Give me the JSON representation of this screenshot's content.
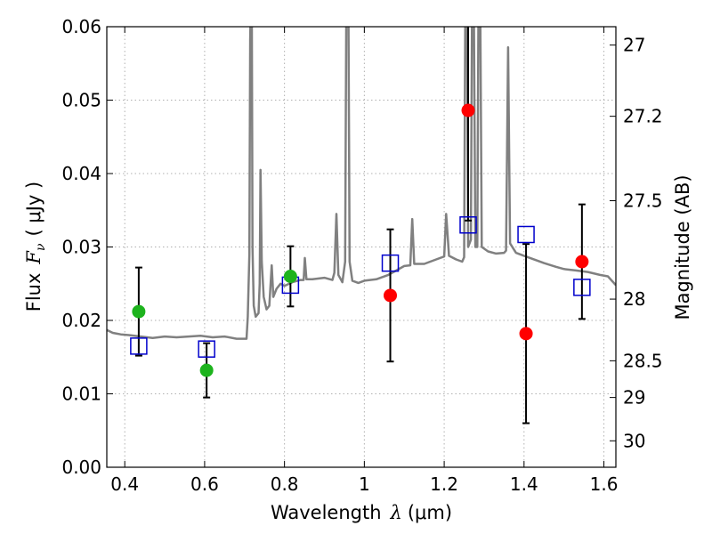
{
  "chart_data": {
    "type": "scatter",
    "xlabel": "Wavelength",
    "xlabel_symbol": "λ",
    "xlabel_unit": "(μm)",
    "ylabel": "Flux",
    "ylabel_symbol": "F",
    "ylabel_subscript": "ν",
    "ylabel_unit": "( μJy )",
    "y2label": "Magnitude (AB)",
    "xlim": [
      0.355,
      1.63
    ],
    "ylim": [
      0.0,
      0.06
    ],
    "grid": true,
    "x_ticks": [
      {
        "value": 0.4,
        "label": "0.4"
      },
      {
        "value": 0.6,
        "label": "0.6"
      },
      {
        "value": 0.8,
        "label": "0.8"
      },
      {
        "value": 1.0,
        "label": "1"
      },
      {
        "value": 1.2,
        "label": "1.2"
      },
      {
        "value": 1.4,
        "label": "1.4"
      },
      {
        "value": 1.6,
        "label": "1.6"
      }
    ],
    "y_ticks": [
      {
        "value": 0.0,
        "label": "0.00"
      },
      {
        "value": 0.01,
        "label": "0.01"
      },
      {
        "value": 0.02,
        "label": "0.02"
      },
      {
        "value": 0.03,
        "label": "0.03"
      },
      {
        "value": 0.04,
        "label": "0.04"
      },
      {
        "value": 0.05,
        "label": "0.05"
      },
      {
        "value": 0.06,
        "label": "0.06"
      }
    ],
    "mag_ticks": [
      {
        "label": "27",
        "flux": 0.0575
      },
      {
        "label": "27.2",
        "flux": 0.0478
      },
      {
        "label": "27.5",
        "flux": 0.0363
      },
      {
        "label": "28",
        "flux": 0.0229
      },
      {
        "label": "28.5",
        "flux": 0.0145
      },
      {
        "label": "29",
        "flux": 0.0095
      },
      {
        "label": "30",
        "flux": 0.0036
      }
    ],
    "colors": {
      "model": "#808080",
      "green": "#1db31d",
      "red": "#ff0000",
      "blue_box": "#0000cc",
      "error": "#000000",
      "grid": "#b0b0b0"
    },
    "model_spectrum": [
      [
        0.355,
        0.0187
      ],
      [
        0.37,
        0.0183
      ],
      [
        0.39,
        0.0181
      ],
      [
        0.41,
        0.018
      ],
      [
        0.44,
        0.0178
      ],
      [
        0.47,
        0.0176
      ],
      [
        0.5,
        0.0178
      ],
      [
        0.53,
        0.0177
      ],
      [
        0.56,
        0.0178
      ],
      [
        0.59,
        0.0179
      ],
      [
        0.62,
        0.0177
      ],
      [
        0.65,
        0.0178
      ],
      [
        0.68,
        0.0175
      ],
      [
        0.705,
        0.0175
      ],
      [
        0.708,
        0.0205
      ],
      [
        0.712,
        0.029
      ],
      [
        0.714,
        0.0582
      ],
      [
        0.716,
        0.065
      ],
      [
        0.718,
        0.063
      ],
      [
        0.72,
        0.03
      ],
      [
        0.723,
        0.022
      ],
      [
        0.728,
        0.0205
      ],
      [
        0.735,
        0.021
      ],
      [
        0.738,
        0.025
      ],
      [
        0.74,
        0.0405
      ],
      [
        0.743,
        0.028
      ],
      [
        0.748,
        0.0232
      ],
      [
        0.755,
        0.0215
      ],
      [
        0.762,
        0.022
      ],
      [
        0.768,
        0.0275
      ],
      [
        0.772,
        0.0232
      ],
      [
        0.78,
        0.0243
      ],
      [
        0.79,
        0.025
      ],
      [
        0.8,
        0.0247
      ],
      [
        0.82,
        0.0252
      ],
      [
        0.84,
        0.0255
      ],
      [
        0.848,
        0.0255
      ],
      [
        0.851,
        0.0285
      ],
      [
        0.855,
        0.0256
      ],
      [
        0.87,
        0.0256
      ],
      [
        0.9,
        0.0258
      ],
      [
        0.92,
        0.0255
      ],
      [
        0.925,
        0.0265
      ],
      [
        0.93,
        0.0345
      ],
      [
        0.935,
        0.0262
      ],
      [
        0.945,
        0.0252
      ],
      [
        0.952,
        0.028
      ],
      [
        0.955,
        0.065
      ],
      [
        0.96,
        0.065
      ],
      [
        0.963,
        0.028
      ],
      [
        0.97,
        0.0254
      ],
      [
        0.985,
        0.0251
      ],
      [
        1.0,
        0.0254
      ],
      [
        1.03,
        0.0256
      ],
      [
        1.06,
        0.0262
      ],
      [
        1.08,
        0.0268
      ],
      [
        1.1,
        0.0274
      ],
      [
        1.115,
        0.0275
      ],
      [
        1.12,
        0.0338
      ],
      [
        1.125,
        0.0277
      ],
      [
        1.15,
        0.0277
      ],
      [
        1.18,
        0.0283
      ],
      [
        1.2,
        0.0287
      ],
      [
        1.205,
        0.0345
      ],
      [
        1.212,
        0.0288
      ],
      [
        1.23,
        0.0283
      ],
      [
        1.245,
        0.028
      ],
      [
        1.25,
        0.0286
      ],
      [
        1.253,
        0.065
      ],
      [
        1.257,
        0.065
      ],
      [
        1.26,
        0.03
      ],
      [
        1.267,
        0.031
      ],
      [
        1.27,
        0.065
      ],
      [
        1.274,
        0.065
      ],
      [
        1.278,
        0.03
      ],
      [
        1.283,
        0.03
      ],
      [
        1.286,
        0.065
      ],
      [
        1.29,
        0.065
      ],
      [
        1.294,
        0.03
      ],
      [
        1.31,
        0.0294
      ],
      [
        1.33,
        0.0291
      ],
      [
        1.35,
        0.0292
      ],
      [
        1.355,
        0.0295
      ],
      [
        1.36,
        0.0572
      ],
      [
        1.365,
        0.0305
      ],
      [
        1.38,
        0.0292
      ],
      [
        1.4,
        0.0288
      ],
      [
        1.42,
        0.0284
      ],
      [
        1.45,
        0.0278
      ],
      [
        1.48,
        0.0273
      ],
      [
        1.5,
        0.027
      ],
      [
        1.53,
        0.0268
      ],
      [
        1.56,
        0.0266
      ],
      [
        1.59,
        0.0262
      ],
      [
        1.61,
        0.026
      ],
      [
        1.63,
        0.0248
      ]
    ],
    "series": [
      {
        "marker": "circle",
        "color": "green",
        "points": [
          {
            "x": 0.435,
            "y": 0.0212,
            "err": 0.006
          },
          {
            "x": 0.605,
            "y": 0.0132,
            "err": 0.0037
          },
          {
            "x": 0.815,
            "y": 0.026,
            "err": 0.0041
          }
        ]
      },
      {
        "marker": "circle",
        "color": "red",
        "points": [
          {
            "x": 1.065,
            "y": 0.0234,
            "err": 0.009
          },
          {
            "x": 1.26,
            "y": 0.0486,
            "err": 0.015
          },
          {
            "x": 1.405,
            "y": 0.0182,
            "err": 0.0122
          },
          {
            "x": 1.545,
            "y": 0.028,
            "err": 0.0078
          }
        ]
      },
      {
        "marker": "square",
        "color": "blue_box",
        "points": [
          {
            "x": 0.435,
            "y": 0.0165
          },
          {
            "x": 0.605,
            "y": 0.0161
          },
          {
            "x": 0.815,
            "y": 0.0248
          },
          {
            "x": 1.065,
            "y": 0.0278
          },
          {
            "x": 1.26,
            "y": 0.033
          },
          {
            "x": 1.405,
            "y": 0.0317
          },
          {
            "x": 1.545,
            "y": 0.0245
          }
        ]
      }
    ]
  }
}
